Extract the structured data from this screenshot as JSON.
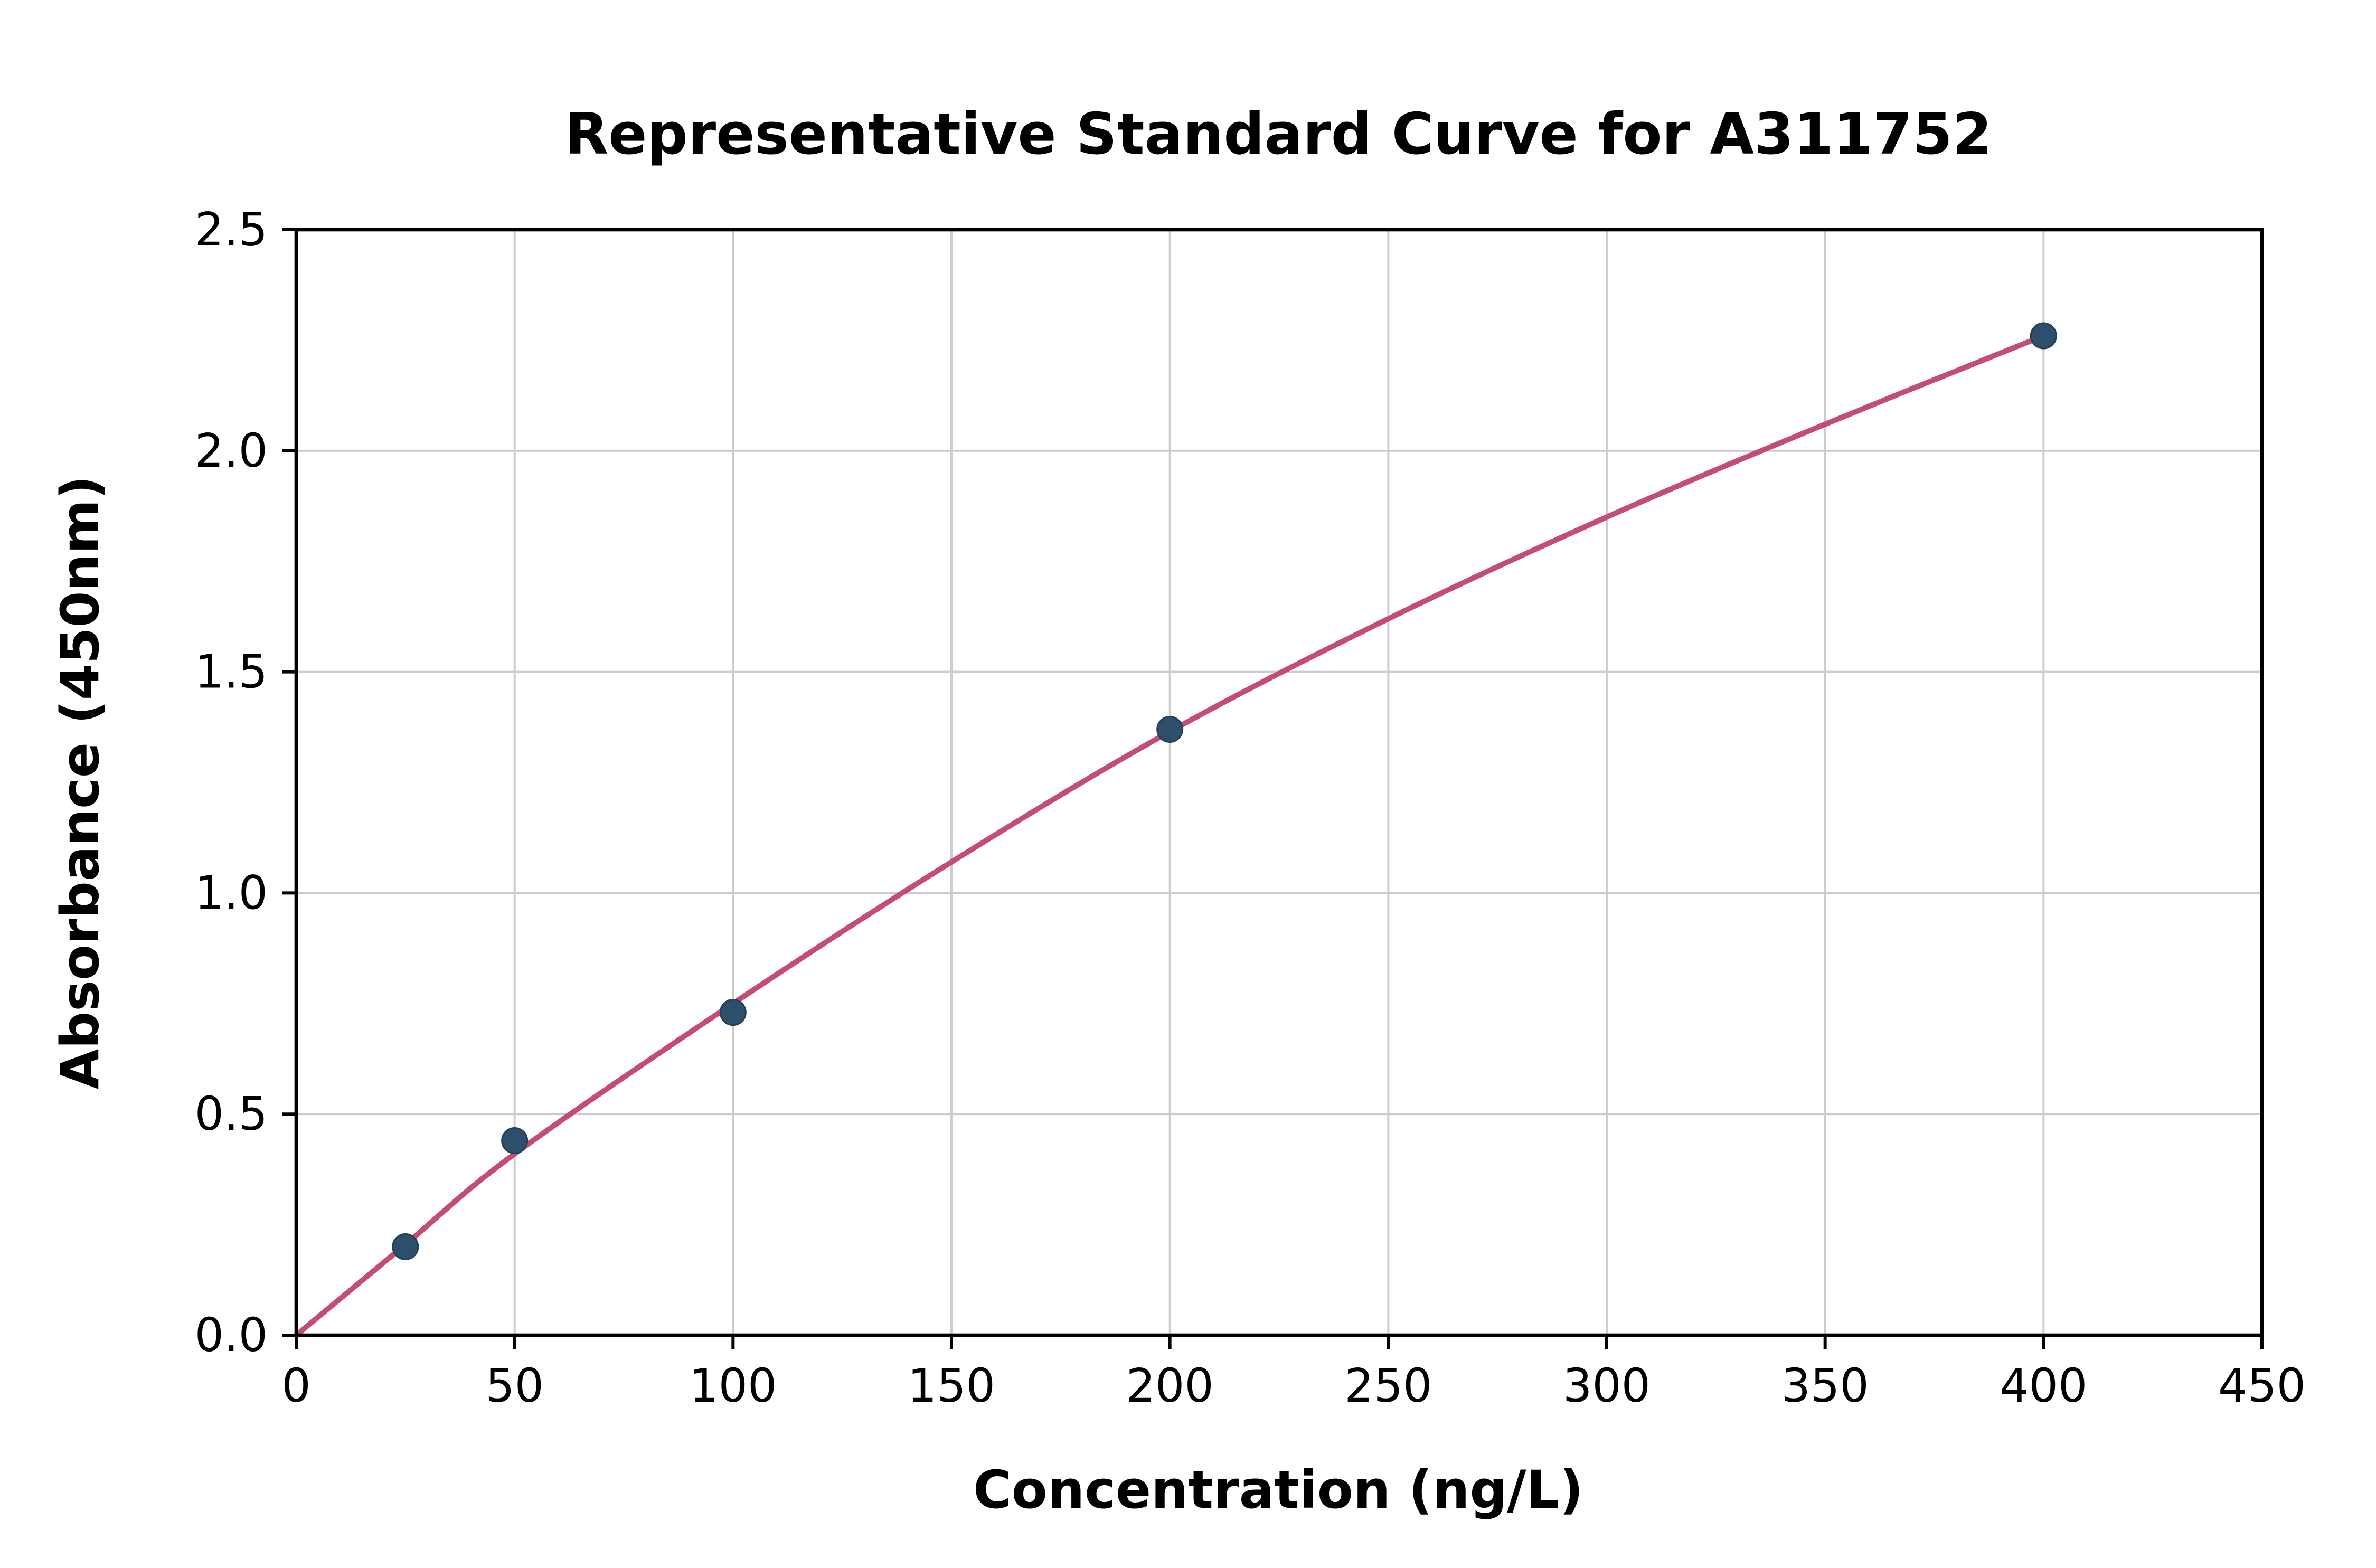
{
  "chart_data": {
    "type": "scatter",
    "title": "Representative Standard Curve for A311752",
    "xlabel": "Concentration (ng/L)",
    "ylabel": "Absorbance (450nm)",
    "xlim": [
      0,
      450
    ],
    "ylim": [
      0,
      2.5
    ],
    "xticks": [
      {
        "value": 0,
        "label": "0"
      },
      {
        "value": 50,
        "label": "50"
      },
      {
        "value": 100,
        "label": "100"
      },
      {
        "value": 150,
        "label": "150"
      },
      {
        "value": 200,
        "label": "200"
      },
      {
        "value": 250,
        "label": "250"
      },
      {
        "value": 300,
        "label": "300"
      },
      {
        "value": 350,
        "label": "350"
      },
      {
        "value": 400,
        "label": "400"
      },
      {
        "value": 450,
        "label": "450"
      }
    ],
    "yticks": [
      {
        "value": 0.0,
        "label": "0.0"
      },
      {
        "value": 0.5,
        "label": "0.5"
      },
      {
        "value": 1.0,
        "label": "1.0"
      },
      {
        "value": 1.5,
        "label": "1.5"
      },
      {
        "value": 2.0,
        "label": "2.0"
      },
      {
        "value": 2.5,
        "label": "2.5"
      }
    ],
    "grid": true,
    "legend": "none",
    "points": [
      {
        "x": 25,
        "y": 0.2
      },
      {
        "x": 50,
        "y": 0.44
      },
      {
        "x": 100,
        "y": 0.73
      },
      {
        "x": 200,
        "y": 1.37
      },
      {
        "x": 400,
        "y": 2.26
      }
    ],
    "curve": [
      {
        "x": 0,
        "y": 0.0
      },
      {
        "x": 25,
        "y": 0.205
      },
      {
        "x": 50,
        "y": 0.41
      },
      {
        "x": 100,
        "y": 0.75
      },
      {
        "x": 150,
        "y": 1.07
      },
      {
        "x": 200,
        "y": 1.365
      },
      {
        "x": 250,
        "y": 1.62
      },
      {
        "x": 300,
        "y": 1.85
      },
      {
        "x": 350,
        "y": 2.06
      },
      {
        "x": 400,
        "y": 2.26
      }
    ],
    "colors": {
      "point": "#2e4f6c",
      "point_edge": "#24405a",
      "curve": "#c44d76",
      "grid": "#cccccc",
      "axis": "#000000",
      "background": "#ffffff"
    }
  }
}
